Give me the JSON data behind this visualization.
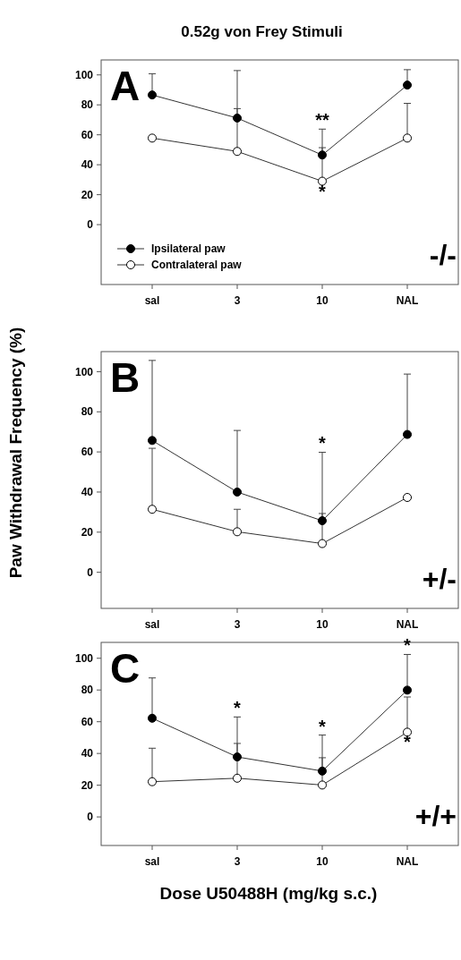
{
  "chart_data": [
    {
      "type": "line",
      "title": "0.52g von Frey Stimuli",
      "categories": [
        "sal",
        "3",
        "10",
        "NAL"
      ],
      "ylim": [
        -40,
        110
      ],
      "yticks": [
        0,
        20,
        40,
        60,
        80,
        100
      ],
      "marker": "circle",
      "legend": "bottom left",
      "series": [
        {
          "name": "Ipsilateral paw",
          "color": "#000000",
          "values": [
            86.6,
            71.2,
            46.5,
            93.2
          ],
          "errors": [
            [
              86.6,
              100.8
            ],
            [
              71.2,
              102.9
            ],
            [
              46.5,
              63.8
            ],
            [
              93.2,
              103.5
            ]
          ]
        },
        {
          "name": "Contralateral paw",
          "color": "#ffffff",
          "values": [
            57.8,
            48.9,
            29,
            57.8
          ],
          "errors": [
            null,
            [
              48.9,
              77.5
            ],
            [
              29,
              51.4
            ],
            [
              57.8,
              81
            ]
          ]
        }
      ],
      "annotations": [
        "A",
        "-/-",
        {
          "text": "**",
          "x": "10",
          "y": 64
        },
        {
          "text": "*",
          "x": "10",
          "y": 29
        }
      ]
    },
    {
      "type": "line",
      "ylabel": "Paw Withdrawal Frequency (%)",
      "categories": [
        "sal",
        "3",
        "10",
        "NAL"
      ],
      "ylim": [
        -18,
        110
      ],
      "yticks": [
        0,
        20,
        40,
        60,
        80,
        100
      ],
      "marker": "circle",
      "series": [
        {
          "color": "#000000",
          "values": [
            65.7,
            40,
            25.7,
            68.7
          ],
          "errors": [
            [
              65.7,
              105.6
            ],
            [
              40,
              70.7
            ],
            [
              25.7,
              59.8
            ],
            [
              68.7,
              98.8
            ]
          ]
        },
        {
          "color": "#ffffff",
          "values": [
            31.4,
            20.2,
            14.3,
            37.3
          ],
          "errors": [
            [
              31.4,
              61.8
            ],
            [
              20.2,
              31.4
            ],
            [
              14.3,
              29.3
            ],
            null
          ]
        }
      ],
      "annotations": [
        "B",
        "+/-",
        {
          "text": "*",
          "x": "10",
          "y": 60
        }
      ]
    },
    {
      "type": "line",
      "xlabel": "Dose U50488H (mg/kg s.c.)",
      "categories": [
        "sal",
        "3",
        "10",
        "NAL"
      ],
      "ylim": [
        -18,
        110
      ],
      "yticks": [
        0,
        20,
        40,
        60,
        80,
        100
      ],
      "marker": "circle",
      "series": [
        {
          "color": "#000000",
          "values": [
            62.2,
            37.8,
            28.9,
            79.9
          ],
          "errors": [
            [
              62.2,
              87.6
            ],
            [
              37.8,
              63
            ],
            [
              28.9,
              51.6
            ],
            [
              79.9,
              102.4
            ]
          ]
        },
        {
          "color": "#ffffff",
          "values": [
            22.2,
            24.4,
            20.1,
            53.4
          ],
          "errors": [
            [
              22.2,
              43.3
            ],
            [
              24.4,
              46.3
            ],
            [
              20.1,
              37.3
            ],
            [
              53.4,
              75.6
            ]
          ]
        }
      ],
      "annotations": [
        "C",
        "+/+",
        {
          "text": "*",
          "x": "3",
          "y": 63
        },
        {
          "text": "*",
          "x": "10",
          "y": 51.6
        },
        {
          "text": "*",
          "x": "NAL",
          "y": 102.4
        },
        {
          "text": "*",
          "x": "NAL",
          "y": 53.4
        }
      ]
    }
  ]
}
